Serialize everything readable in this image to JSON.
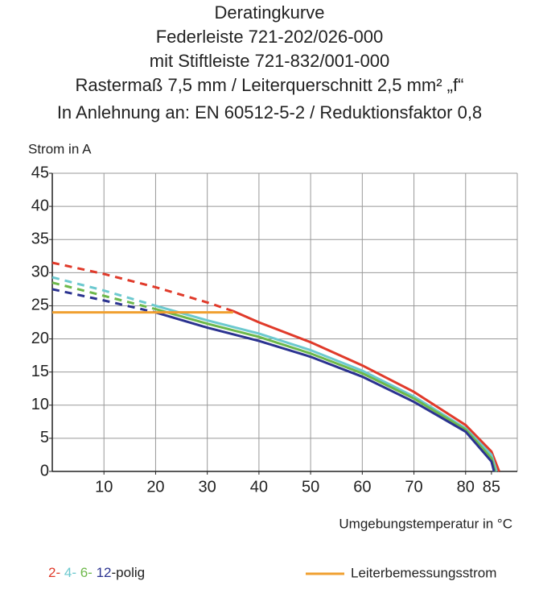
{
  "chart_data": {
    "type": "line",
    "title": [
      "Deratingkurve",
      "Federleiste 721-202/026-000",
      "mit Stiftleiste 721-832/001-000",
      "Rastermaß 7,5 mm / Leiterquerschnitt 2,5 mm² „f“",
      "In Anlehnung an: EN 60512-5-2 / Reduktionsfaktor 0,8"
    ],
    "ylabel": "Strom in A",
    "xlabel": "Umgebungstemperatur in °C",
    "xlim": [
      0,
      90
    ],
    "xticks": [
      10,
      20,
      30,
      40,
      50,
      60,
      70,
      80,
      85
    ],
    "ylim": [
      0,
      45
    ],
    "yticks": [
      0,
      5,
      10,
      15,
      20,
      25,
      30,
      35,
      40,
      45
    ],
    "grid": true,
    "legend_suffix": "-polig",
    "series": [
      {
        "name": "2-",
        "color": "#e03a2a",
        "dashed_until": 35,
        "x": [
          0,
          10,
          20,
          30,
          35,
          40,
          50,
          60,
          70,
          80,
          85,
          86.5
        ],
        "values": [
          31.5,
          29.8,
          27.8,
          25.5,
          24.2,
          22.5,
          19.5,
          16,
          12,
          7,
          3,
          0
        ]
      },
      {
        "name": "4-",
        "color": "#6cc9cf",
        "dashed_until": 20,
        "x": [
          0,
          10,
          20,
          30,
          40,
          50,
          60,
          70,
          80,
          85,
          86
        ],
        "values": [
          29.3,
          27.3,
          25,
          22.8,
          20.8,
          18.3,
          15.2,
          11.3,
          6.5,
          2.5,
          0
        ]
      },
      {
        "name": "6-",
        "color": "#6db84a",
        "dashed_until": 20,
        "x": [
          0,
          10,
          20,
          30,
          40,
          50,
          60,
          70,
          80,
          85,
          85.7
        ],
        "values": [
          28.5,
          26.5,
          24.5,
          22.3,
          20.3,
          17.8,
          14.8,
          11,
          6.3,
          2,
          0
        ]
      },
      {
        "name": "12",
        "color": "#2b3390",
        "dashed_until": 20,
        "x": [
          0,
          10,
          20,
          30,
          40,
          50,
          60,
          70,
          80,
          85,
          85.5
        ],
        "values": [
          27.5,
          25.8,
          24,
          21.7,
          19.7,
          17.3,
          14.3,
          10.5,
          6,
          1.5,
          0
        ]
      },
      {
        "name": "Leiterbemessungsstrom",
        "color": "#f0a030",
        "x": [
          0,
          35
        ],
        "values": [
          24,
          24
        ]
      }
    ]
  }
}
